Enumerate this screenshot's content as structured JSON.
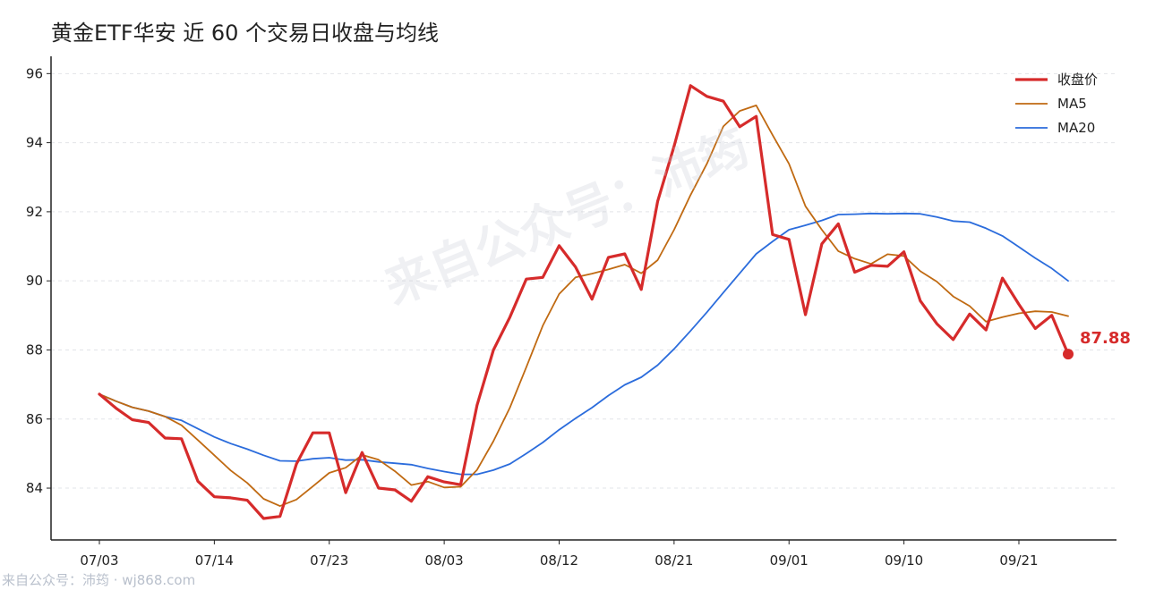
{
  "chart_data": {
    "type": "line",
    "title": "黄金ETF华安 近 60 个交易日收盘与均线",
    "xlabel": "",
    "ylabel": "",
    "ylim": [
      82.5,
      96.5
    ],
    "yticks": [
      84,
      86,
      88,
      90,
      92,
      94,
      96
    ],
    "xticks": [
      {
        "label": "07/03",
        "index": 0
      },
      {
        "label": "07/14",
        "index": 7
      },
      {
        "label": "07/23",
        "index": 14
      },
      {
        "label": "08/03",
        "index": 21
      },
      {
        "label": "08/12",
        "index": 28
      },
      {
        "label": "08/21",
        "index": 35
      },
      {
        "label": "09/01",
        "index": 42
      },
      {
        "label": "09/10",
        "index": 49
      },
      {
        "label": "09/21",
        "index": 56
      }
    ],
    "grid": "horizontal-dashed",
    "legend_position": "top-right",
    "series": [
      {
        "name": "收盘价",
        "color": "#d62b2b",
        "values": [
          86.72,
          86.32,
          85.98,
          85.9,
          85.45,
          85.43,
          84.2,
          83.75,
          83.72,
          83.65,
          83.12,
          83.18,
          84.7,
          85.6,
          85.6,
          83.87,
          85.03,
          84.0,
          83.95,
          83.62,
          84.33,
          84.18,
          84.1,
          86.4,
          88.0,
          88.95,
          90.05,
          90.1,
          91.02,
          90.4,
          89.47,
          90.68,
          90.78,
          89.75,
          92.3,
          93.9,
          95.65,
          95.34,
          95.2,
          94.46,
          94.76,
          91.34,
          91.2,
          89.02,
          91.07,
          91.65,
          90.25,
          90.45,
          90.42,
          90.84,
          89.42,
          88.76,
          88.3,
          89.04,
          88.58,
          90.08,
          89.32,
          88.62,
          89.0,
          87.88
        ]
      },
      {
        "name": "MA5",
        "color": "#c06a12",
        "values": [
          86.72,
          86.52,
          86.34,
          86.23,
          86.07,
          85.82,
          85.39,
          84.95,
          84.51,
          84.15,
          83.69,
          83.48,
          83.67,
          84.05,
          84.44,
          84.59,
          84.96,
          84.82,
          84.49,
          84.09,
          84.19,
          84.02,
          84.04,
          84.53,
          85.36,
          86.33,
          87.5,
          88.7,
          89.62,
          90.1,
          90.21,
          90.33,
          90.47,
          90.22,
          90.6,
          91.48,
          92.48,
          93.39,
          94.47,
          94.92,
          95.08,
          94.22,
          93.39,
          92.16,
          91.48,
          90.86,
          90.64,
          90.49,
          90.77,
          90.72,
          90.28,
          89.98,
          89.55,
          89.27,
          88.82,
          88.95,
          89.06,
          89.12,
          89.1,
          88.98
        ]
      },
      {
        "name": "MA20",
        "color": "#2b6cdc",
        "values": [
          86.72,
          86.52,
          86.34,
          86.23,
          86.07,
          85.96,
          85.72,
          85.48,
          85.29,
          85.13,
          84.95,
          84.79,
          84.78,
          84.85,
          84.88,
          84.81,
          84.82,
          84.76,
          84.72,
          84.68,
          84.57,
          84.48,
          84.4,
          84.4,
          84.52,
          84.7,
          85.0,
          85.32,
          85.69,
          86.02,
          86.33,
          86.68,
          86.99,
          87.21,
          87.56,
          88.03,
          88.55,
          89.09,
          89.66,
          90.22,
          90.78,
          91.14,
          91.48,
          91.61,
          91.75,
          91.92,
          91.93,
          91.95,
          91.94,
          91.95,
          91.94,
          91.85,
          91.73,
          91.7,
          91.52,
          91.3,
          90.98,
          90.66,
          90.36,
          90.0
        ]
      }
    ],
    "annotations": [
      {
        "label": "87.88",
        "series": "收盘价",
        "index": 59
      }
    ],
    "watermark": "来自公众号：沛筠"
  },
  "footer": {
    "text": "来自公众号：沛筠 · wj868.com"
  }
}
